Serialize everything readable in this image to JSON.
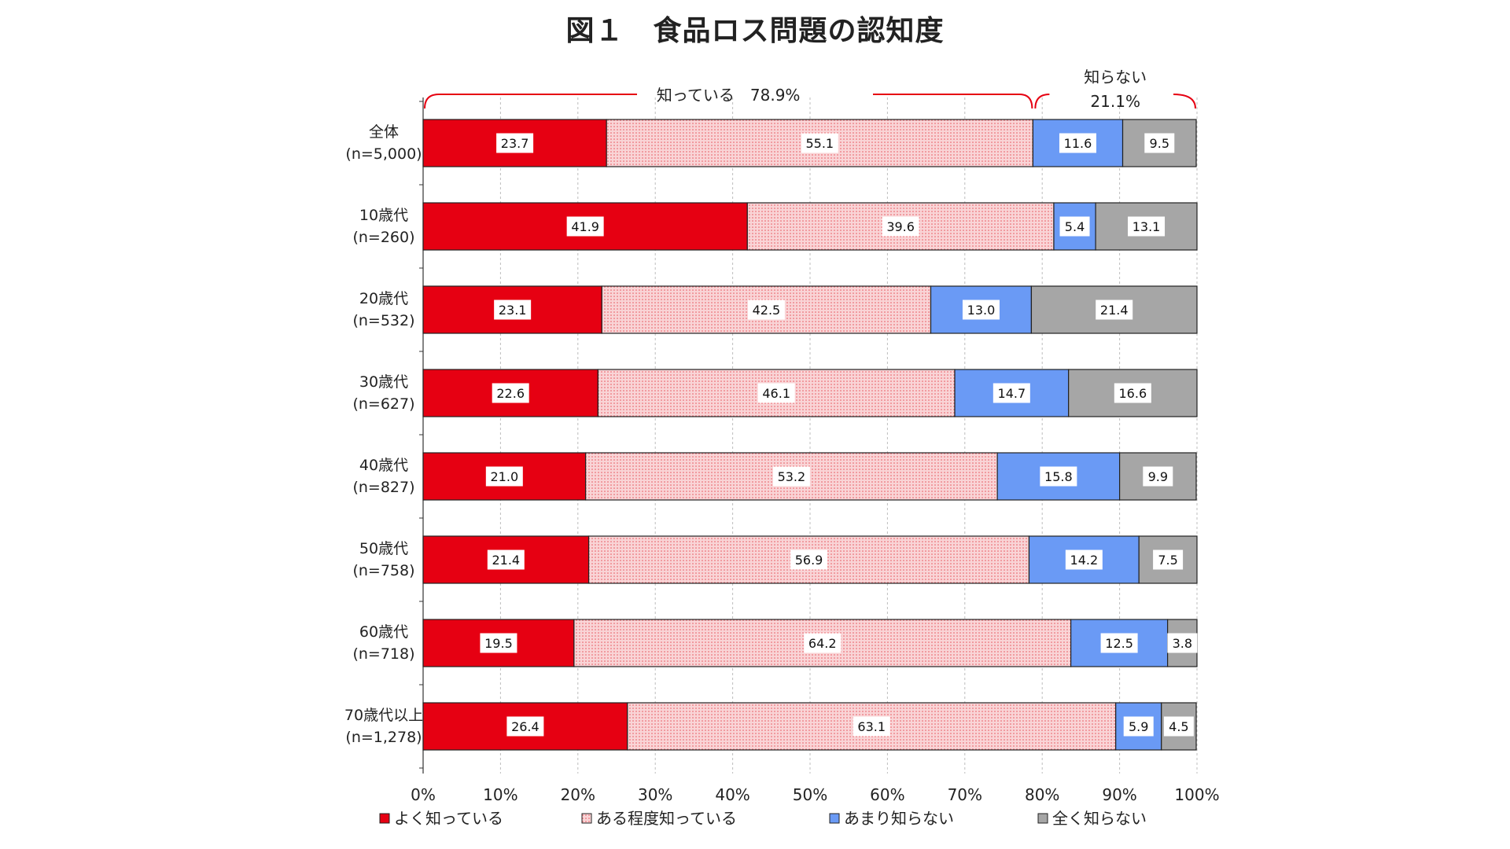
{
  "title": "図１　食品ロス問題の認知度",
  "colors": {
    "well": "#e60012",
    "somewhat": "#f9d4d6",
    "somewhat_dot": "#e8575f",
    "little": "#6a9af5",
    "none": "#a6a6a6"
  },
  "chart_data": {
    "type": "bar",
    "orientation": "horizontal",
    "stacked": true,
    "xlim": [
      0,
      100
    ],
    "x_ticks": [
      "0%",
      "10%",
      "20%",
      "30%",
      "40%",
      "50%",
      "60%",
      "70%",
      "80%",
      "90%",
      "100%"
    ],
    "grid": "vertical dashed",
    "legend_position": "bottom",
    "categories": [
      {
        "label": "全体",
        "n": "(n=5,000)"
      },
      {
        "label": "10歳代",
        "n": "(n=260)"
      },
      {
        "label": "20歳代",
        "n": "(n=532)"
      },
      {
        "label": "30歳代",
        "n": "(n=627)"
      },
      {
        "label": "40歳代",
        "n": "(n=827)"
      },
      {
        "label": "50歳代",
        "n": "(n=758)"
      },
      {
        "label": "60歳代",
        "n": "(n=718)"
      },
      {
        "label": "70歳代以上",
        "n": "(n=1,278)"
      }
    ],
    "series": [
      {
        "name": "よく知っている",
        "key": "well",
        "values": [
          23.7,
          41.9,
          23.1,
          22.6,
          21.0,
          21.4,
          19.5,
          26.4
        ]
      },
      {
        "name": "ある程度知っている",
        "key": "somewhat",
        "values": [
          55.1,
          39.6,
          42.5,
          46.1,
          53.2,
          56.9,
          64.2,
          63.1
        ]
      },
      {
        "name": "あまり知らない",
        "key": "little",
        "values": [
          11.6,
          5.4,
          13.0,
          14.7,
          15.8,
          14.2,
          12.5,
          5.9
        ]
      },
      {
        "name": "全く知らない",
        "key": "none",
        "values": [
          9.5,
          13.1,
          21.4,
          16.6,
          9.9,
          7.5,
          3.8,
          4.5
        ]
      }
    ],
    "annotations": {
      "know": {
        "label": "知っている　78.9%",
        "value": 78.9
      },
      "dont_know": {
        "label_line1": "知らない",
        "label_line2": "21.1%",
        "value": 21.1
      }
    }
  }
}
